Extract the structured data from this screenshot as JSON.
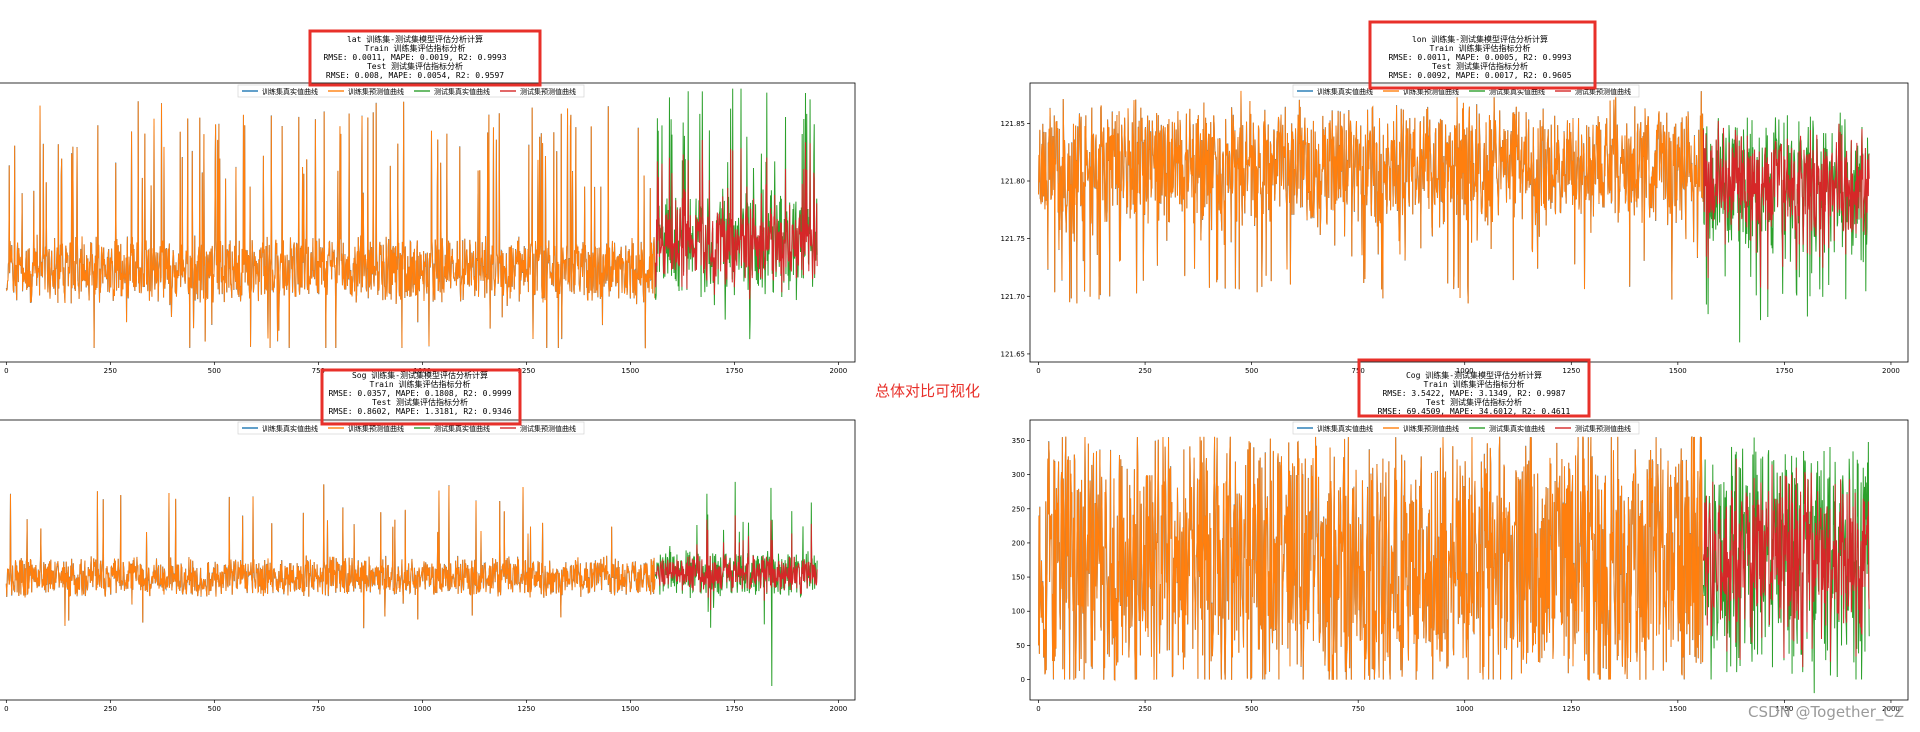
{
  "center_label": "总体对比可视化",
  "watermark": "CSDN @Together_CZ",
  "colors": {
    "train_true": "#1f77b4",
    "train_pred": "#ff7f0e",
    "test_true": "#2ca02c",
    "test_pred": "#d62728",
    "highlight_box": "#e8302a"
  },
  "chart_data": [
    {
      "type": "line",
      "title_lines": [
        "lat 训练集-测试集模型评估分析计算",
        "Train 训练集评估指标分析",
        "RMSE: 0.0011, MAPE: 0.0019, R2: 0.9993",
        "Test 测试集评估指标分析",
        "RMSE: 0.008, MAPE: 0.0054, R2: 0.9597"
      ],
      "legend": [
        "训练集真实值曲线",
        "训练集预测值曲线",
        "测试集真实值曲线",
        "测试集预测值曲线"
      ],
      "xlim": [
        -20,
        2040
      ],
      "ylim": [
        0,
        1
      ],
      "x_ticks": [
        0,
        250,
        500,
        750,
        1000,
        1250,
        1500,
        1750,
        2000
      ],
      "y_ticks": [],
      "train_len": 1560,
      "total_len": 1950,
      "seed": 11,
      "base": 0.33,
      "spread": 0.1,
      "spike_prob": 0.08,
      "spike_amp": 0.55,
      "floor": 0.05,
      "ceiling": 0.98,
      "test_base": 0.42,
      "test_spread": 0.16,
      "test_true_spikes": [
        [
          1598,
          0.87
        ]
      ],
      "series": [
        {
          "name": "训练集真实值曲线",
          "range": "train",
          "role": "true"
        },
        {
          "name": "训练集预测值曲线",
          "range": "train",
          "role": "pred"
        },
        {
          "name": "测试集真实值曲线",
          "range": "test",
          "role": "true"
        },
        {
          "name": "测试集预测值曲线",
          "range": "test",
          "role": "pred"
        }
      ]
    },
    {
      "type": "line",
      "title_lines": [
        "lon 训练集-测试集模型评估分析计算",
        "Train 训练集评估指标分析",
        "RMSE: 0.0011, MAPE: 0.0005, R2: 0.9993",
        "Test 测试集评估指标分析",
        "RMSE: 0.0092, MAPE: 0.0017, R2: 0.9605"
      ],
      "legend": [
        "训练集真实值曲线",
        "训练集预测值曲线",
        "测试集真实值曲线",
        "测试集预测值曲线"
      ],
      "xlim": [
        -20,
        2040
      ],
      "ylim": [
        121.643,
        121.885
      ],
      "x_ticks": [
        0,
        250,
        500,
        750,
        1000,
        1250,
        1500,
        1750,
        2000
      ],
      "y_ticks": [
        121.65,
        121.7,
        121.75,
        121.8,
        121.85
      ],
      "train_len": 1560,
      "total_len": 1950,
      "seed": 23,
      "base": 121.815,
      "spread": 0.045,
      "spike_prob": 0.06,
      "spike_amp": -0.11,
      "floor": 121.655,
      "ceiling": 121.878,
      "test_base": 121.8,
      "test_spread": 0.05,
      "test_true_spikes": [
        [
          1645,
          121.66
        ]
      ],
      "series": [
        {
          "name": "训练集真实值曲线",
          "range": "train",
          "role": "true"
        },
        {
          "name": "训练集预测值曲线",
          "range": "train",
          "role": "pred"
        },
        {
          "name": "测试集真实值曲线",
          "range": "test",
          "role": "true"
        },
        {
          "name": "测试集预测值曲线",
          "range": "test",
          "role": "pred"
        }
      ]
    },
    {
      "type": "line",
      "title_lines": [
        "Sog 训练集-测试集模型评估分析计算",
        "Train 训练集评估指标分析",
        "RMSE: 0.0357, MAPE: 0.1808, R2: 0.9999",
        "Test 测试集评估指标分析",
        "RMSE: 0.8602, MAPE: 1.3181, R2: 0.9346"
      ],
      "legend": [
        "训练集真实值曲线",
        "训练集预测值曲线",
        "测试集真实值曲线",
        "测试集预测值曲线"
      ],
      "xlim": [
        -20,
        2040
      ],
      "ylim": [
        0,
        1
      ],
      "x_ticks": [
        0,
        250,
        500,
        750,
        1000,
        1250,
        1500,
        1750,
        2000
      ],
      "y_ticks": [],
      "train_len": 1560,
      "total_len": 1950,
      "seed": 37,
      "base": 0.44,
      "spread": 0.06,
      "spike_prob": 0.035,
      "spike_amp": 0.3,
      "floor": 0.05,
      "ceiling": 0.95,
      "test_base": 0.45,
      "test_spread": 0.07,
      "test_true_spikes": [
        [
          1840,
          0.05
        ],
        [
          1595,
          0.55
        ],
        [
          1915,
          0.62
        ]
      ],
      "series": [
        {
          "name": "训练集真实值曲线",
          "range": "train",
          "role": "true"
        },
        {
          "name": "训练集预测值曲线",
          "range": "train",
          "role": "pred"
        },
        {
          "name": "测试集真实值曲线",
          "range": "test",
          "role": "true"
        },
        {
          "name": "测试集预测值曲线",
          "range": "test",
          "role": "pred"
        }
      ]
    },
    {
      "type": "line",
      "title_lines": [
        "Cog 训练集-测试集模型评估分析计算",
        "Train 训练集评估指标分析",
        "RMSE: 3.5422, MAPE: 3.1349, R2: 0.9987",
        "Test 测试集评估指标分析",
        "RMSE: 69.4509, MAPE: 34.6012, R2: 0.4611"
      ],
      "legend": [
        "训练集真实值曲线",
        "训练集预测值曲线",
        "测试集真实值曲线",
        "测试集预测值曲线"
      ],
      "xlim": [
        -20,
        2040
      ],
      "ylim": [
        -30,
        380
      ],
      "x_ticks": [
        0,
        250,
        500,
        750,
        1000,
        1250,
        1500,
        1750,
        2000
      ],
      "y_ticks": [
        0,
        50,
        100,
        150,
        200,
        250,
        300,
        350
      ],
      "train_len": 1560,
      "total_len": 1950,
      "seed": 53,
      "base": 175,
      "spread": 170,
      "spike_prob": 0.0,
      "spike_amp": 0,
      "floor": 0,
      "ceiling": 355,
      "test_base": 175,
      "test_spread": 150,
      "test_true_spikes": [
        [
          1820,
          -20
        ]
      ],
      "series": [
        {
          "name": "训练集真实值曲线",
          "range": "train",
          "role": "true"
        },
        {
          "name": "训练集预测值曲线",
          "range": "train",
          "role": "pred"
        },
        {
          "name": "测试集真实值曲线",
          "range": "test",
          "role": "true"
        },
        {
          "name": "测试集预测值曲线",
          "range": "test",
          "role": "pred"
        }
      ]
    }
  ]
}
